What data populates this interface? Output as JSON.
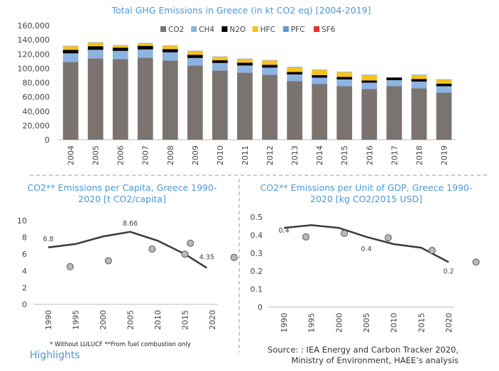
{
  "chart_data": [
    {
      "type": "bar",
      "stacked": true,
      "title": "Total GHG Emissions in Greece (in kt CO2 eq) [2004-2019]",
      "categories": [
        "2004",
        "2005",
        "2006",
        "2007",
        "2008",
        "2009",
        "2010",
        "2011",
        "2012",
        "2013",
        "2014",
        "2015",
        "2016",
        "2017",
        "2018",
        "2019"
      ],
      "series": [
        {
          "name": "CO2",
          "color": "#7b7370",
          "values": [
            109000,
            114000,
            113000,
            115000,
            111000,
            104000,
            97000,
            94000,
            91000,
            82000,
            78000,
            75000,
            71000,
            75000,
            72000,
            66000
          ]
        },
        {
          "name": "CH4",
          "color": "#8db3e2",
          "values": [
            12000,
            12000,
            11500,
            11500,
            11500,
            10500,
            10500,
            10000,
            10000,
            9500,
            9000,
            9500,
            9000,
            8500,
            9500,
            9000
          ]
        },
        {
          "name": "N2O",
          "color": "#000000",
          "values": [
            5000,
            5000,
            4500,
            5000,
            4500,
            4500,
            4000,
            4000,
            4000,
            3500,
            3500,
            3500,
            3000,
            3500,
            3500,
            3500
          ]
        },
        {
          "name": "HFC",
          "color": "#f7c21c",
          "values": [
            5000,
            5000,
            3000,
            3500,
            4500,
            5000,
            4500,
            5000,
            6000,
            6500,
            7000,
            6500,
            7500,
            0,
            5500,
            5500
          ]
        },
        {
          "name": "PFC",
          "color": "#5b9bd5",
          "values": [
            500,
            500,
            500,
            500,
            500,
            500,
            500,
            500,
            500,
            500,
            500,
            500,
            500,
            500,
            500,
            500
          ]
        },
        {
          "name": "SF6",
          "color": "#e0302a",
          "values": [
            100,
            100,
            100,
            100,
            100,
            100,
            100,
            100,
            100,
            100,
            100,
            100,
            100,
            100,
            100,
            100
          ]
        }
      ],
      "ylim": [
        0,
        160000
      ],
      "yticks": [
        0,
        20000,
        40000,
        60000,
        80000,
        100000,
        120000,
        140000,
        160000
      ],
      "ytick_labels": [
        "0",
        "20,000",
        "40,000",
        "60,000",
        "80,000",
        "100,000",
        "120,000",
        "140,000",
        "160,000"
      ],
      "legend": "top-right",
      "grid": false
    },
    {
      "type": "line",
      "title": "CO2** Emissions per Capita, Greece 1990-2020 [t CO2/capita]",
      "x_ticks": [
        "1990",
        "1995",
        "2000",
        "2005",
        "2010",
        "2015",
        "2020"
      ],
      "xlim": [
        1990,
        2020
      ],
      "ylim": [
        0,
        10
      ],
      "yticks": [
        "0",
        "2",
        "4",
        "6",
        "8",
        "10"
      ],
      "line": [
        {
          "x": 1990,
          "y": 6.8
        },
        {
          "x": 1995,
          "y": 7.2
        },
        {
          "x": 2000,
          "y": 8.1
        },
        {
          "x": 2005,
          "y": 8.66
        },
        {
          "x": 2010,
          "y": 7.6
        },
        {
          "x": 2015,
          "y": 6.0
        },
        {
          "x": 2019,
          "y": 4.35
        }
      ],
      "points": [
        {
          "x": 1994,
          "y": 4.5
        },
        {
          "x": 2001,
          "y": 5.2
        },
        {
          "x": 2009,
          "y": 6.6
        },
        {
          "x": 2015,
          "y": 6.0
        },
        {
          "x": 2016,
          "y": 7.3
        },
        {
          "x": 2024,
          "y": 5.6
        }
      ],
      "data_labels": [
        {
          "x": 1990,
          "y": 6.8,
          "text": "6.8"
        },
        {
          "x": 2005,
          "y": 8.66,
          "text": "8.66"
        },
        {
          "x": 2019,
          "y": 4.35,
          "text": "4.35"
        }
      ]
    },
    {
      "type": "line",
      "title": "CO2** Emissions per Unit of GDP, Greece 1990-2020 [kg CO2/2015 USD]",
      "x_ticks": [
        "1990",
        "1995",
        "2000",
        "2005",
        "2010",
        "2015",
        "2020"
      ],
      "xlim": [
        1990,
        2020
      ],
      "ylim": [
        0,
        0.5
      ],
      "yticks": [
        "0",
        "0.1",
        "0.2",
        "0.3",
        "0.4",
        "0.5"
      ],
      "line": [
        {
          "x": 1990,
          "y": 0.44
        },
        {
          "x": 1995,
          "y": 0.455
        },
        {
          "x": 2000,
          "y": 0.44
        },
        {
          "x": 2005,
          "y": 0.39
        },
        {
          "x": 2010,
          "y": 0.35
        },
        {
          "x": 2015,
          "y": 0.33
        },
        {
          "x": 2020,
          "y": 0.25
        }
      ],
      "points": [
        {
          "x": 1994,
          "y": 0.39
        },
        {
          "x": 2001,
          "y": 0.41
        },
        {
          "x": 2009,
          "y": 0.385
        },
        {
          "x": 2017,
          "y": 0.315
        },
        {
          "x": 2025,
          "y": 0.25
        }
      ],
      "data_labels": [
        {
          "x": 1990,
          "y": 0.44,
          "text": "0.4"
        },
        {
          "x": 2005,
          "y": 0.39,
          "text": "0.4"
        },
        {
          "x": 2020,
          "y": 0.25,
          "text": "0.2"
        }
      ]
    }
  ],
  "notes": {
    "footnote": "* Without LULUCF   **From fuel combustion only",
    "highlights": "Highlights",
    "source_line1": "Source: : IEA Energy and Carbon Tracker 2020,",
    "source_line2": "Ministry of Environment, HAEE’s analysis"
  }
}
